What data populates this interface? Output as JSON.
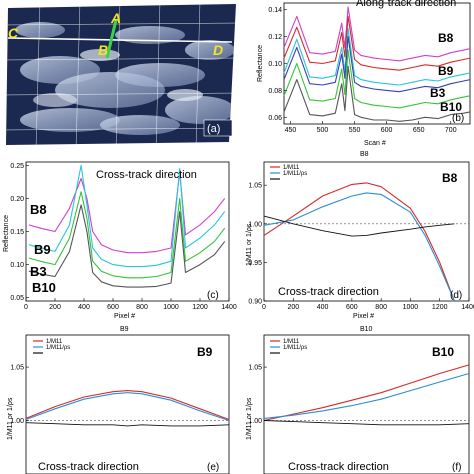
{
  "figure": {
    "colors": {
      "red": "#d42a2a",
      "blue": "#2a8fd4",
      "black": "#111111",
      "magenta": "#d23fc8",
      "cyan": "#27c6d8",
      "dkblue": "#3a3fb0",
      "green": "#35c43a",
      "gray": "#555555",
      "sat_bg": "#1b2850",
      "track": "#3bd24a",
      "label_yellow": "#f2e51e"
    }
  },
  "panel_a": {
    "tag": "(a)",
    "points": [
      "A",
      "B",
      "C",
      "D"
    ]
  },
  "panel_b": {
    "title": "Along-track direction",
    "tag": "(b)",
    "top_label": "",
    "xlabel": "Scan #",
    "ylabel": "Reflectance",
    "xticks": [
      "450",
      "500",
      "550",
      "600",
      "650",
      "700"
    ],
    "yticks": [
      "0.06",
      "0.08",
      "0.10",
      "0.12",
      "0.14"
    ],
    "bands": [
      "B8",
      "B9",
      "B3",
      "B10"
    ]
  },
  "panel_c": {
    "title": "Cross-track direction",
    "tag": "(c)",
    "xlabel": "Pixel #",
    "ylabel": "Reflectance",
    "xticks": [
      "0",
      "200",
      "400",
      "600",
      "800",
      "1000",
      "1200",
      "1400"
    ],
    "yticks": [
      "0.05",
      "0.10",
      "0.15",
      "0.20",
      "0.25"
    ],
    "bands": [
      "B8",
      "B9",
      "B3",
      "B10"
    ]
  },
  "panel_d": {
    "top_label": "B8",
    "band": "B8",
    "subtitle": "Cross-track direction",
    "tag": "(d)",
    "xlabel": "Pixel #",
    "ylabel": "1/M11 or 1/ρs",
    "xticks": [
      "0",
      "200",
      "400",
      "600",
      "800",
      "1000",
      "1200",
      "1400"
    ],
    "yticks": [
      "0.90",
      "0.95",
      "1.00",
      "1.05"
    ],
    "legend": [
      "1/M11",
      "1/M11/ρs"
    ]
  },
  "panel_e": {
    "top_label": "B9",
    "band": "B9",
    "subtitle": "Cross-track direction",
    "tag": "(e)",
    "ylabel": "1/M11 or 1/ρs",
    "yticks": [
      "1.00",
      "1.05"
    ],
    "legend": [
      "1/M11",
      "1/M11/ρs"
    ]
  },
  "panel_f": {
    "top_label": "B10",
    "band": "B10",
    "subtitle": "Cross-track direction",
    "tag": "(f)",
    "ylabel": "1/M11 or 1/ρs",
    "yticks": [
      "1.00",
      "1.05"
    ],
    "legend": [
      "1/M11",
      "1/M11/ρs"
    ]
  },
  "chart_data": [
    {
      "id": "b",
      "type": "line",
      "title": "Along-track direction",
      "xlabel": "Scan #",
      "ylabel": "Reflectance",
      "xlim": [
        440,
        730
      ],
      "ylim": [
        0.055,
        0.145
      ],
      "x": [
        440,
        460,
        480,
        500,
        520,
        530,
        535,
        540,
        550,
        560,
        580,
        600,
        620,
        640,
        660,
        680,
        700,
        720,
        730
      ],
      "series": [
        {
          "name": "B8",
          "color": "magenta",
          "values": [
            0.112,
            0.135,
            0.108,
            0.107,
            0.109,
            0.13,
            0.112,
            0.142,
            0.11,
            0.106,
            0.104,
            0.103,
            0.102,
            0.104,
            0.106,
            0.105,
            0.108,
            0.11,
            0.111
          ]
        },
        {
          "name": "red",
          "color": "red",
          "values": [
            0.104,
            0.127,
            0.101,
            0.1,
            0.102,
            0.123,
            0.105,
            0.135,
            0.103,
            0.099,
            0.097,
            0.096,
            0.095,
            0.097,
            0.099,
            0.098,
            0.101,
            0.103,
            0.104
          ]
        },
        {
          "name": "B9",
          "color": "cyan",
          "values": [
            0.093,
            0.118,
            0.09,
            0.089,
            0.091,
            0.112,
            0.094,
            0.126,
            0.091,
            0.088,
            0.086,
            0.085,
            0.084,
            0.086,
            0.088,
            0.087,
            0.09,
            0.092,
            0.093
          ]
        },
        {
          "name": "blue",
          "color": "dkblue",
          "values": [
            0.088,
            0.112,
            0.085,
            0.084,
            0.086,
            0.107,
            0.089,
            0.12,
            0.086,
            0.083,
            0.081,
            0.08,
            0.079,
            0.081,
            0.083,
            0.082,
            0.085,
            0.087,
            0.088
          ]
        },
        {
          "name": "B3",
          "color": "green",
          "values": [
            0.076,
            0.1,
            0.073,
            0.072,
            0.074,
            0.096,
            0.077,
            0.11,
            0.074,
            0.071,
            0.069,
            0.068,
            0.067,
            0.069,
            0.071,
            0.07,
            0.073,
            0.075,
            0.076
          ]
        },
        {
          "name": "B10",
          "color": "gray",
          "values": [
            0.064,
            0.088,
            0.062,
            0.061,
            0.063,
            0.085,
            0.065,
            0.098,
            0.062,
            0.06,
            0.058,
            0.058,
            0.057,
            0.058,
            0.06,
            0.059,
            0.062,
            0.063,
            0.064
          ]
        }
      ]
    },
    {
      "id": "c",
      "type": "line",
      "title": "Cross-track direction",
      "xlabel": "Pixel #",
      "ylabel": "Reflectance",
      "xlim": [
        0,
        1400
      ],
      "ylim": [
        0.045,
        0.255
      ],
      "x": [
        20,
        100,
        200,
        300,
        380,
        420,
        460,
        520,
        600,
        700,
        800,
        900,
        1000,
        1060,
        1100,
        1200,
        1300,
        1370
      ],
      "series": [
        {
          "name": "B8",
          "color": "magenta",
          "values": [
            0.16,
            0.155,
            0.15,
            0.185,
            0.23,
            0.2,
            0.15,
            0.13,
            0.122,
            0.118,
            0.118,
            0.12,
            0.125,
            0.24,
            0.145,
            0.16,
            0.18,
            0.2
          ]
        },
        {
          "name": "B9",
          "color": "cyan",
          "values": [
            0.13,
            0.125,
            0.12,
            0.16,
            0.25,
            0.19,
            0.125,
            0.108,
            0.1,
            0.097,
            0.097,
            0.099,
            0.105,
            0.245,
            0.125,
            0.14,
            0.16,
            0.18
          ]
        },
        {
          "name": "B3",
          "color": "green",
          "values": [
            0.11,
            0.105,
            0.1,
            0.14,
            0.21,
            0.17,
            0.105,
            0.09,
            0.083,
            0.08,
            0.08,
            0.082,
            0.088,
            0.2,
            0.105,
            0.118,
            0.135,
            0.155
          ]
        },
        {
          "name": "B10",
          "color": "gray",
          "values": [
            0.09,
            0.086,
            0.082,
            0.12,
            0.19,
            0.15,
            0.088,
            0.074,
            0.068,
            0.066,
            0.066,
            0.067,
            0.072,
            0.18,
            0.088,
            0.1,
            0.115,
            0.135
          ]
        }
      ]
    },
    {
      "id": "d",
      "type": "line",
      "title": "B8",
      "xlabel": "Pixel #",
      "ylabel": "1/M11 or 1/ρs",
      "xlim": [
        0,
        1400
      ],
      "ylim": [
        0.9,
        1.08
      ],
      "x": [
        0,
        200,
        400,
        600,
        700,
        800,
        1000,
        1100,
        1200,
        1300
      ],
      "series": [
        {
          "name": "1/M11",
          "color": "red",
          "values": [
            0.985,
            1.01,
            1.036,
            1.051,
            1.053,
            1.048,
            1.02,
            0.99,
            0.95,
            0.9
          ]
        },
        {
          "name": "1/M11/ρs",
          "color": "blue",
          "values": [
            0.998,
            1.005,
            1.022,
            1.036,
            1.04,
            1.038,
            1.015,
            0.985,
            0.945,
            0.9
          ]
        },
        {
          "name": "black",
          "color": "black",
          "values": [
            1.01,
            1.0,
            0.991,
            0.984,
            0.985,
            0.988,
            0.993,
            0.996,
            0.998,
            1.0
          ]
        }
      ]
    },
    {
      "id": "e",
      "type": "line",
      "title": "B9",
      "xlabel": "",
      "ylabel": "1/M11 or 1/ρs",
      "xlim": [
        0,
        1400
      ],
      "ylim": [
        0.95,
        1.08
      ],
      "x": [
        0,
        200,
        400,
        600,
        700,
        800,
        1000,
        1200,
        1400
      ],
      "series": [
        {
          "name": "1/M11",
          "color": "red",
          "values": [
            1.002,
            1.013,
            1.022,
            1.027,
            1.028,
            1.027,
            1.021,
            1.011,
            1.001
          ]
        },
        {
          "name": "1/M11/ρs",
          "color": "blue",
          "values": [
            1.001,
            1.011,
            1.02,
            1.025,
            1.026,
            1.025,
            1.019,
            1.009,
            1.0
          ]
        },
        {
          "name": "black",
          "color": "black",
          "values": [
            0.998,
            0.997,
            0.996,
            0.996,
            0.995,
            0.996,
            0.995,
            0.995,
            0.996
          ]
        }
      ]
    },
    {
      "id": "f",
      "type": "line",
      "title": "B10",
      "xlabel": "",
      "ylabel": "1/M11 or 1/ρs",
      "xlim": [
        0,
        1400
      ],
      "ylim": [
        0.95,
        1.08
      ],
      "x": [
        0,
        200,
        400,
        600,
        800,
        1000,
        1200,
        1400
      ],
      "series": [
        {
          "name": "1/M11",
          "color": "red",
          "values": [
            1.0,
            1.006,
            1.012,
            1.019,
            1.026,
            1.035,
            1.044,
            1.052
          ]
        },
        {
          "name": "1/M11/ρs",
          "color": "blue",
          "values": [
            1.002,
            1.005,
            1.009,
            1.014,
            1.02,
            1.028,
            1.036,
            1.044
          ]
        },
        {
          "name": "black",
          "color": "black",
          "values": [
            1.0,
            0.999,
            0.998,
            0.997,
            0.996,
            0.996,
            0.996,
            0.997
          ]
        }
      ]
    }
  ]
}
